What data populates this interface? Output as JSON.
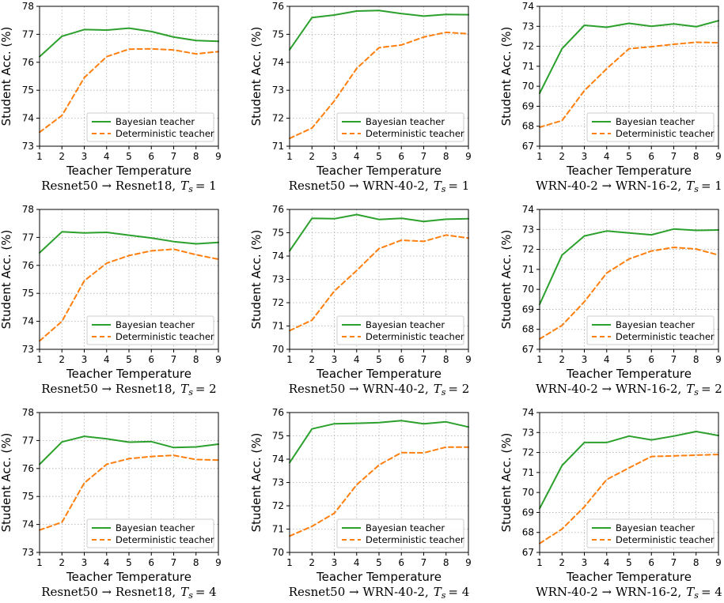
{
  "colors": {
    "bayesian": "#2ca02c",
    "deterministic": "#ff7f0e",
    "grid": "#b0b0b0"
  },
  "chart_data": [
    {
      "type": "line",
      "caption": {
        "pair": "Resnet50 → Resnet18,",
        "ts": "= 1"
      },
      "x": [
        1,
        2,
        3,
        4,
        5,
        6,
        7,
        8,
        9
      ],
      "xlabel": "Teacher Temperature",
      "ylabel": "Student Acc. (%)",
      "ylim": [
        73,
        78
      ],
      "yticks": [
        73,
        74,
        75,
        76,
        77,
        78
      ],
      "grid": true,
      "legend_position": "lower-right",
      "series": [
        {
          "name": "Bayesian teacher",
          "style": "solid",
          "values": [
            76.2,
            76.93,
            77.17,
            77.15,
            77.22,
            77.1,
            76.9,
            76.78,
            76.75
          ]
        },
        {
          "name": "Deterministic teacher",
          "style": "dashed",
          "values": [
            73.5,
            74.1,
            75.45,
            76.2,
            76.47,
            76.48,
            76.44,
            76.3,
            76.38
          ]
        }
      ]
    },
    {
      "type": "line",
      "caption": {
        "pair": "Resnet50 → WRN-40-2,",
        "ts": "= 1"
      },
      "x": [
        1,
        2,
        3,
        4,
        5,
        6,
        7,
        8,
        9
      ],
      "xlabel": "Teacher Temperature",
      "ylabel": "Student Acc. (%)",
      "ylim": [
        71,
        76
      ],
      "yticks": [
        71,
        72,
        73,
        74,
        75,
        76
      ],
      "grid": true,
      "legend_position": "lower-right",
      "series": [
        {
          "name": "Bayesian teacher",
          "style": "solid",
          "values": [
            74.45,
            75.6,
            75.69,
            75.83,
            75.85,
            75.74,
            75.65,
            75.71,
            75.7
          ]
        },
        {
          "name": "Deterministic teacher",
          "style": "dashed",
          "values": [
            71.28,
            71.65,
            72.62,
            73.78,
            74.52,
            74.62,
            74.9,
            75.07,
            75.02
          ]
        }
      ]
    },
    {
      "type": "line",
      "caption": {
        "pair": "WRN-40-2 → WRN-16-2,",
        "ts": "= 1"
      },
      "x": [
        1,
        2,
        3,
        4,
        5,
        6,
        7,
        8,
        9
      ],
      "xlabel": "Teacher Temperature",
      "ylabel": "Student Acc. (%)",
      "ylim": [
        67,
        74
      ],
      "yticks": [
        67,
        68,
        69,
        70,
        71,
        72,
        73,
        74
      ],
      "grid": true,
      "legend_position": "lower-right",
      "series": [
        {
          "name": "Bayesian teacher",
          "style": "solid",
          "values": [
            69.65,
            71.88,
            73.05,
            72.95,
            73.15,
            73.0,
            73.12,
            72.98,
            73.28
          ]
        },
        {
          "name": "Deterministic teacher",
          "style": "dashed",
          "values": [
            67.95,
            68.28,
            69.78,
            70.88,
            71.88,
            71.98,
            72.1,
            72.2,
            72.18
          ]
        }
      ]
    },
    {
      "type": "line",
      "caption": {
        "pair": "Resnet50 → Resnet18,",
        "ts": "= 2"
      },
      "x": [
        1,
        2,
        3,
        4,
        5,
        6,
        7,
        8,
        9
      ],
      "xlabel": "Teacher Temperature",
      "ylabel": "Student Acc. (%)",
      "ylim": [
        73,
        78
      ],
      "yticks": [
        73,
        74,
        75,
        76,
        77,
        78
      ],
      "grid": true,
      "legend_position": "lower-right",
      "series": [
        {
          "name": "Bayesian teacher",
          "style": "solid",
          "values": [
            76.45,
            77.2,
            77.16,
            77.18,
            77.08,
            76.98,
            76.85,
            76.77,
            76.82
          ]
        },
        {
          "name": "Deterministic teacher",
          "style": "dashed",
          "values": [
            73.3,
            74.0,
            75.45,
            76.08,
            76.35,
            76.52,
            76.58,
            76.38,
            76.22
          ]
        }
      ]
    },
    {
      "type": "line",
      "caption": {
        "pair": "Resnet50 → WRN-40-2,",
        "ts": "= 2"
      },
      "x": [
        1,
        2,
        3,
        4,
        5,
        6,
        7,
        8,
        9
      ],
      "xlabel": "Teacher Temperature",
      "ylabel": "Student Acc. (%)",
      "ylim": [
        70,
        76
      ],
      "yticks": [
        70,
        71,
        72,
        73,
        74,
        75,
        76
      ],
      "grid": true,
      "legend_position": "lower-right",
      "series": [
        {
          "name": "Bayesian teacher",
          "style": "solid",
          "values": [
            74.22,
            75.62,
            75.6,
            75.78,
            75.57,
            75.62,
            75.48,
            75.58,
            75.6
          ]
        },
        {
          "name": "Deterministic teacher",
          "style": "dashed",
          "values": [
            70.8,
            71.25,
            72.5,
            73.38,
            74.32,
            74.68,
            74.63,
            74.9,
            74.77
          ]
        }
      ]
    },
    {
      "type": "line",
      "caption": {
        "pair": "WRN-40-2 → WRN-16-2,",
        "ts": "= 2"
      },
      "x": [
        1,
        2,
        3,
        4,
        5,
        6,
        7,
        8,
        9
      ],
      "xlabel": "Teacher Temperature",
      "ylabel": "Student Acc. (%)",
      "ylim": [
        67,
        74
      ],
      "yticks": [
        67,
        68,
        69,
        70,
        71,
        72,
        73,
        74
      ],
      "grid": true,
      "legend_position": "lower-right",
      "series": [
        {
          "name": "Bayesian teacher",
          "style": "solid",
          "values": [
            69.25,
            71.72,
            72.67,
            72.92,
            72.82,
            72.73,
            73.02,
            72.95,
            72.97
          ]
        },
        {
          "name": "Deterministic teacher",
          "style": "dashed",
          "values": [
            67.52,
            68.2,
            69.38,
            70.82,
            71.52,
            71.92,
            72.1,
            72.02,
            71.72
          ]
        }
      ]
    },
    {
      "type": "line",
      "caption": {
        "pair": "Resnet50 → Resnet18,",
        "ts": "= 4"
      },
      "x": [
        1,
        2,
        3,
        4,
        5,
        6,
        7,
        8,
        9
      ],
      "xlabel": "Teacher Temperature",
      "ylabel": "Student Acc. (%)",
      "ylim": [
        73,
        78
      ],
      "yticks": [
        73,
        74,
        75,
        76,
        77,
        78
      ],
      "grid": true,
      "legend_position": "lower-right",
      "series": [
        {
          "name": "Bayesian teacher",
          "style": "solid",
          "values": [
            76.15,
            76.95,
            77.15,
            77.06,
            76.94,
            76.96,
            76.75,
            76.77,
            76.87
          ]
        },
        {
          "name": "Deterministic teacher",
          "style": "dashed",
          "values": [
            73.8,
            74.08,
            75.48,
            76.15,
            76.35,
            76.43,
            76.47,
            76.32,
            76.3
          ]
        }
      ]
    },
    {
      "type": "line",
      "caption": {
        "pair": "Resnet50 → WRN-40-2,",
        "ts": "= 4"
      },
      "x": [
        1,
        2,
        3,
        4,
        5,
        6,
        7,
        8,
        9
      ],
      "xlabel": "Teacher Temperature",
      "ylabel": "Student Acc. (%)",
      "ylim": [
        70,
        76
      ],
      "yticks": [
        70,
        71,
        72,
        73,
        74,
        75,
        76
      ],
      "grid": true,
      "legend_position": "lower-right",
      "series": [
        {
          "name": "Bayesian teacher",
          "style": "solid",
          "values": [
            73.85,
            75.3,
            75.52,
            75.54,
            75.57,
            75.65,
            75.52,
            75.6,
            75.38
          ]
        },
        {
          "name": "Deterministic teacher",
          "style": "dashed",
          "values": [
            70.7,
            71.12,
            71.68,
            72.9,
            73.75,
            74.28,
            74.27,
            74.52,
            74.52
          ]
        }
      ]
    },
    {
      "type": "line",
      "caption": {
        "pair": "WRN-40-2 → WRN-16-2,",
        "ts": "= 4"
      },
      "x": [
        1,
        2,
        3,
        4,
        5,
        6,
        7,
        8,
        9
      ],
      "xlabel": "Teacher Temperature",
      "ylabel": "Student Acc. (%)",
      "ylim": [
        67,
        74
      ],
      "yticks": [
        67,
        68,
        69,
        70,
        71,
        72,
        73,
        74
      ],
      "grid": true,
      "legend_position": "lower-right",
      "series": [
        {
          "name": "Bayesian teacher",
          "style": "solid",
          "values": [
            69.2,
            71.35,
            72.5,
            72.5,
            72.82,
            72.63,
            72.82,
            73.05,
            72.85
          ]
        },
        {
          "name": "Deterministic teacher",
          "style": "dashed",
          "values": [
            67.45,
            68.17,
            69.28,
            70.65,
            71.23,
            71.8,
            71.83,
            71.87,
            71.9
          ]
        }
      ]
    }
  ]
}
